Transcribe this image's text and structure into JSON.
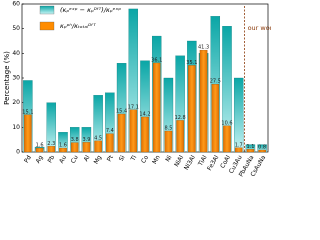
{
  "chart_data": {
    "type": "bar",
    "categories": [
      "Pd",
      "Ag",
      "Pb",
      "Au",
      "Cu",
      "Al",
      "Mg",
      "Pt",
      "Si",
      "Ti",
      "Co",
      "Mn",
      "Ni",
      "NiAl",
      "Ni3Al",
      "TiAl",
      "Fe3Al",
      "CoAl",
      "Cu3Au",
      "PbAuNa",
      "CsAuNa"
    ],
    "series": [
      {
        "name": "(κₚᵉˣᵖ − κₚᴰᶠᵀ)/κₚᵉˣᵖ",
        "color": "#10b5b5",
        "values": [
          29,
          2,
          20,
          8,
          10,
          10,
          23,
          24,
          36,
          58,
          37,
          47,
          30,
          39,
          45,
          40,
          55,
          51,
          30,
          3,
          3
        ]
      },
      {
        "name": "κₚᵖʰ/κₜₒₜₐₗᴰᶠᵀ",
        "color": "#ff8c00",
        "values": [
          15.1,
          1.6,
          2.3,
          1.6,
          3.8,
          3.9,
          4.5,
          7.4,
          15.4,
          17.1,
          14.2,
          36.1,
          8.5,
          12.8,
          35.1,
          41.3,
          27.5,
          10.6,
          1.7,
          1.1,
          0.8
        ]
      }
    ],
    "y_label": "Percentage (%)",
    "annotation": "our work",
    "ylim": [
      0,
      60
    ],
    "yticks": [
      0,
      10,
      20,
      30,
      40,
      50,
      60
    ]
  }
}
